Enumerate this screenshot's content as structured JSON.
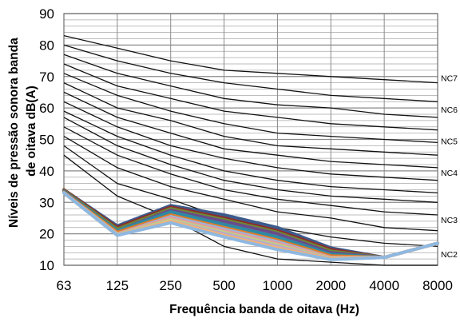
{
  "chart_data": {
    "type": "line",
    "title": "",
    "xlabel": "Frequência banda de oitava (Hz)",
    "ylabel": "Níveis de pressão sonora banda de oitava dB(A)",
    "categories": [
      "63",
      "125",
      "250",
      "500",
      "1000",
      "2000",
      "4000",
      "8000"
    ],
    "ylim": [
      10,
      90
    ],
    "yticks": [
      10,
      20,
      30,
      40,
      50,
      60,
      70,
      80,
      90
    ],
    "grid": true,
    "nc_curves": [
      {
        "name": "",
        "values": [
          83,
          79,
          75,
          72,
          71,
          70,
          69,
          68
        ]
      },
      {
        "name": "NC7",
        "values": [
          80,
          75,
          71,
          68,
          66,
          64,
          63,
          62
        ]
      },
      {
        "name": "",
        "values": [
          77,
          71,
          67,
          63,
          61,
          60,
          58,
          57
        ]
      },
      {
        "name": "NC6",
        "values": [
          74,
          67,
          63,
          59,
          57,
          55,
          54,
          53
        ]
      },
      {
        "name": "",
        "values": [
          71,
          64,
          59,
          55,
          52,
          51,
          50,
          49
        ]
      },
      {
        "name": "NC5",
        "values": [
          68,
          60,
          56,
          51,
          48,
          47,
          46,
          45
        ]
      },
      {
        "name": "",
        "values": [
          65,
          57,
          52,
          47,
          45,
          43,
          42,
          41
        ]
      },
      {
        "name": "NC4",
        "values": [
          62,
          54,
          48,
          44,
          41,
          39,
          38,
          37
        ]
      },
      {
        "name": "",
        "values": [
          59,
          51,
          45,
          40,
          37,
          35,
          34,
          33
        ]
      },
      {
        "name": "",
        "values": [
          57,
          48,
          42,
          37,
          34,
          32,
          31,
          30
        ]
      },
      {
        "name": "NC3",
        "values": [
          54,
          45,
          39,
          34,
          31,
          29,
          27,
          26
        ]
      },
      {
        "name": "",
        "values": [
          51,
          41,
          35,
          31,
          27,
          25,
          22,
          21
        ]
      },
      {
        "name": "",
        "values": [
          48,
          36,
          31,
          25,
          22,
          19,
          17,
          16
        ]
      },
      {
        "name": "NC2",
        "values": [
          45,
          32,
          25,
          16,
          12,
          11,
          10,
          10
        ]
      }
    ],
    "nc_labels": [
      {
        "text": "NC7",
        "y": 69.5
      },
      {
        "text": "NC6",
        "y": 59.5
      },
      {
        "text": "NC5",
        "y": 49.5
      },
      {
        "text": "NC4",
        "y": 39.5
      },
      {
        "text": "NC3",
        "y": 24.5
      },
      {
        "text": "NC2",
        "y": 13.5
      }
    ],
    "measured_series": [
      {
        "name": "",
        "color": "#3b5a8c",
        "values": [
          34,
          22.5,
          29,
          26,
          22,
          15.5,
          12.5,
          17
        ]
      },
      {
        "name": "",
        "color": "#8b2e2b",
        "values": [
          34,
          22,
          28.5,
          25,
          21,
          15,
          12.5,
          17
        ]
      },
      {
        "name": "",
        "color": "#6f8a33",
        "values": [
          33.8,
          21.5,
          28,
          24.5,
          20.5,
          14.5,
          12.5,
          17
        ]
      },
      {
        "name": "",
        "color": "#6a4c8a",
        "values": [
          33.6,
          21,
          27.5,
          24,
          20,
          14,
          12.5,
          17
        ]
      },
      {
        "name": "",
        "color": "#2e8aa3",
        "values": [
          33.4,
          21,
          27,
          23,
          19,
          13.5,
          12.5,
          17
        ]
      },
      {
        "name": "",
        "color": "#e07b24",
        "values": [
          33.2,
          20.5,
          26,
          22,
          18,
          13,
          12.5,
          17
        ]
      },
      {
        "name": "",
        "color": "#9bb3d8",
        "values": [
          33,
          20,
          25.5,
          21.5,
          17.5,
          12.5,
          12.5,
          17
        ]
      },
      {
        "name": "",
        "color": "#e89a9a",
        "values": [
          33,
          20,
          25,
          21,
          17,
          12.5,
          12.5,
          17
        ]
      },
      {
        "name": "",
        "color": "#bcd08a",
        "values": [
          33,
          19.8,
          24.5,
          20.5,
          16.5,
          12.2,
          12.5,
          17
        ]
      },
      {
        "name": "",
        "color": "#b9a6cf",
        "values": [
          33,
          19.6,
          24,
          20,
          16,
          12,
          12.5,
          17
        ]
      },
      {
        "name": "",
        "color": "#f2b27a",
        "values": [
          33,
          19.5,
          24,
          19.5,
          15.5,
          12,
          12.5,
          17
        ]
      },
      {
        "name": "",
        "color": "#8fb8e0",
        "values": [
          33,
          19.5,
          23.5,
          19,
          15,
          11.8,
          12.5,
          17
        ]
      }
    ]
  }
}
